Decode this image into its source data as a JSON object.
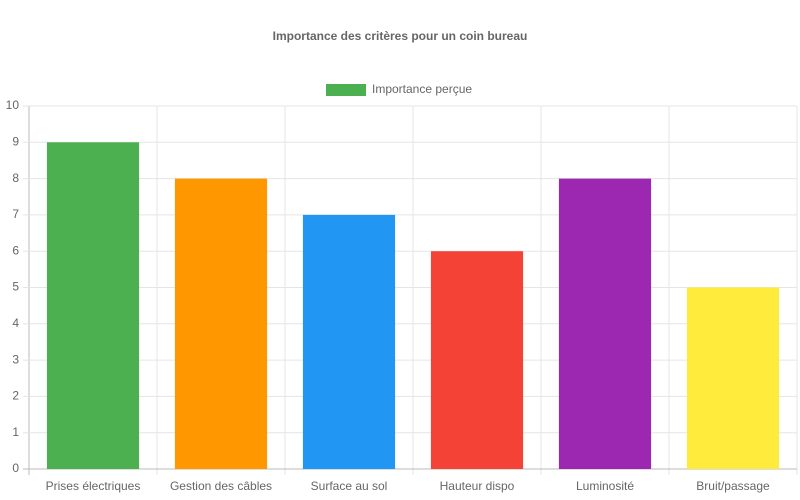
{
  "chart_data": {
    "type": "bar",
    "title": "Importance des critères pour un coin bureau",
    "categories": [
      "Prises électriques",
      "Gestion des câbles",
      "Surface au sol",
      "Hauteur dispo",
      "Luminosité",
      "Bruit/passage"
    ],
    "series": [
      {
        "name": "Importance perçue",
        "colors": [
          "#4caf50",
          "#ff9800",
          "#2196f3",
          "#f44336",
          "#9c27b0",
          "#ffeb3b"
        ],
        "values": [
          9,
          8,
          7,
          6,
          8,
          5
        ]
      }
    ],
    "ylim": [
      0,
      10
    ],
    "yticks": [
      0,
      1,
      2,
      3,
      4,
      5,
      6,
      7,
      8,
      9,
      10
    ],
    "grid": true,
    "legend": "top"
  }
}
